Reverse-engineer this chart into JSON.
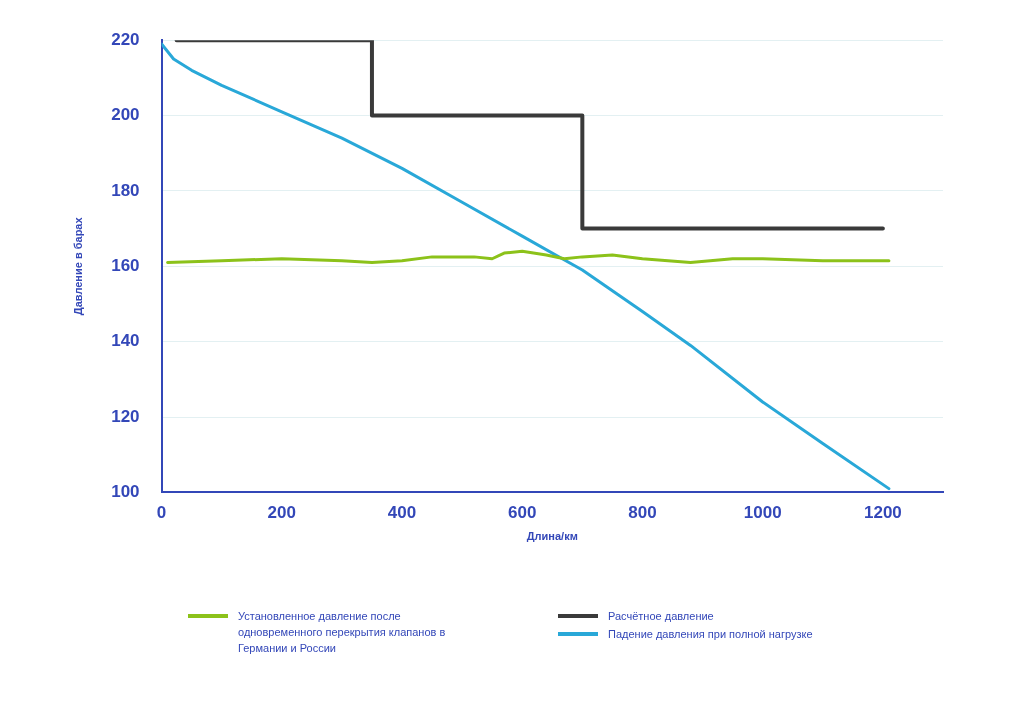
{
  "chart_data": {
    "type": "line",
    "xlabel": "Длина/км",
    "ylabel": "Давление в барах",
    "xlim": [
      0,
      1300
    ],
    "xticks": [
      0,
      200,
      400,
      600,
      800,
      1000,
      1200
    ],
    "ylim": [
      100,
      220
    ],
    "yticks": [
      100,
      120,
      140,
      160,
      180,
      200,
      220
    ],
    "grid": "y",
    "legend": "bottom",
    "marker": "none",
    "line_style": "solid",
    "series": [
      {
        "name": "Установленное давление после одновременного перекрытия клапанов в Германии и России",
        "color": "#8cc21a",
        "x": [
          10,
          100,
          200,
          300,
          350,
          400,
          450,
          520,
          550,
          570,
          600,
          640,
          670,
          700,
          750,
          800,
          880,
          950,
          1000,
          1100,
          1210
        ],
        "values": [
          161,
          161.5,
          162,
          161.5,
          161,
          161.5,
          162.5,
          162.5,
          162,
          163.5,
          164,
          163,
          162,
          162.5,
          163,
          162,
          161,
          162,
          162,
          161.5,
          161.5
        ]
      },
      {
        "name": "Расчётное давление",
        "type": "step",
        "color": "#3a3a3a",
        "x": [
          25,
          350,
          700,
          1200
        ],
        "values": [
          220,
          200,
          170,
          170
        ]
      },
      {
        "name": "Падение давления при полной нагрузке",
        "color": "#29a8d8",
        "x": [
          0,
          20,
          50,
          100,
          200,
          300,
          400,
          500,
          600,
          700,
          800,
          880,
          1000,
          1100,
          1210
        ],
        "values": [
          219,
          215,
          212,
          208,
          201,
          194,
          186,
          177,
          168,
          159,
          148,
          139,
          124,
          113,
          101
        ]
      }
    ]
  }
}
